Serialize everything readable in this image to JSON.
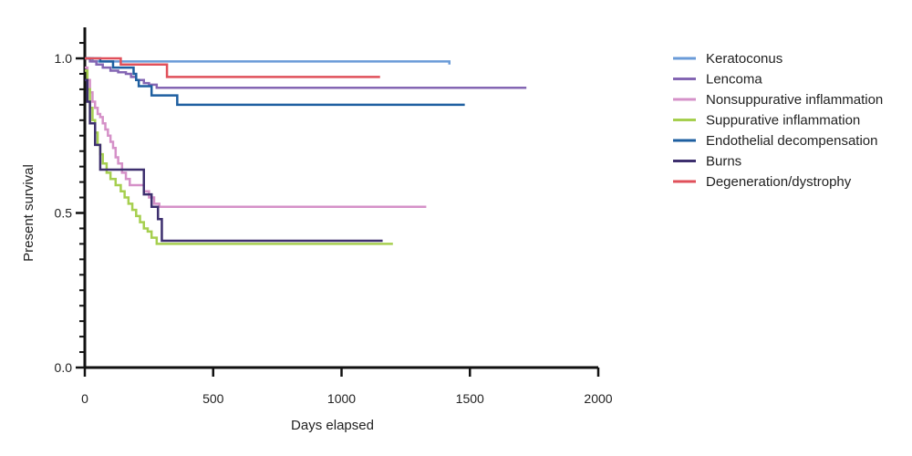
{
  "chart_data": {
    "type": "line",
    "step": true,
    "xlabel": "Days elapsed",
    "ylabel": "Present survival",
    "xlim": [
      0,
      2000
    ],
    "ylim": [
      0,
      1.0
    ],
    "x_ticks": [
      0,
      500,
      1000,
      1500,
      2000
    ],
    "x_tick_labels": [
      "0",
      "500",
      "1000",
      "1500",
      "2000"
    ],
    "y_ticks": [
      0.0,
      0.5,
      1.0
    ],
    "y_tick_labels": [
      "0.0",
      "0.5",
      "1.0"
    ],
    "y_minor_step": 0.05,
    "grid": false,
    "legend_position": "right",
    "series": [
      {
        "name": "Keratoconus",
        "color": "#6a9bd8",
        "points": [
          [
            0,
            1.0
          ],
          [
            30,
            0.99
          ],
          [
            1420,
            0.98
          ]
        ]
      },
      {
        "name": "Lencoma",
        "color": "#8466b3",
        "points": [
          [
            0,
            1.0
          ],
          [
            20,
            0.99
          ],
          [
            45,
            0.98
          ],
          [
            70,
            0.97
          ],
          [
            100,
            0.96
          ],
          [
            130,
            0.955
          ],
          [
            160,
            0.95
          ],
          [
            180,
            0.94
          ],
          [
            200,
            0.93
          ],
          [
            230,
            0.92
          ],
          [
            250,
            0.915
          ],
          [
            280,
            0.905
          ],
          [
            1720,
            0.905
          ]
        ]
      },
      {
        "name": "Nonsuppurative inflammation",
        "color": "#d591c8",
        "points": [
          [
            0,
            0.97
          ],
          [
            10,
            0.93
          ],
          [
            20,
            0.89
          ],
          [
            30,
            0.86
          ],
          [
            40,
            0.84
          ],
          [
            50,
            0.82
          ],
          [
            60,
            0.81
          ],
          [
            70,
            0.79
          ],
          [
            80,
            0.77
          ],
          [
            90,
            0.75
          ],
          [
            100,
            0.73
          ],
          [
            110,
            0.71
          ],
          [
            120,
            0.68
          ],
          [
            130,
            0.66
          ],
          [
            145,
            0.63
          ],
          [
            160,
            0.61
          ],
          [
            175,
            0.59
          ],
          [
            230,
            0.57
          ],
          [
            250,
            0.55
          ],
          [
            270,
            0.53
          ],
          [
            290,
            0.52
          ],
          [
            1330,
            0.52
          ]
        ]
      },
      {
        "name": "Suppurative inflammation",
        "color": "#a6cf4f",
        "points": [
          [
            0,
            0.96
          ],
          [
            10,
            0.9
          ],
          [
            20,
            0.84
          ],
          [
            30,
            0.8
          ],
          [
            40,
            0.76
          ],
          [
            50,
            0.72
          ],
          [
            60,
            0.69
          ],
          [
            70,
            0.66
          ],
          [
            85,
            0.63
          ],
          [
            100,
            0.61
          ],
          [
            120,
            0.59
          ],
          [
            140,
            0.57
          ],
          [
            155,
            0.55
          ],
          [
            170,
            0.53
          ],
          [
            185,
            0.51
          ],
          [
            200,
            0.49
          ],
          [
            215,
            0.47
          ],
          [
            230,
            0.45
          ],
          [
            245,
            0.44
          ],
          [
            260,
            0.42
          ],
          [
            280,
            0.4
          ],
          [
            1200,
            0.4
          ]
        ]
      },
      {
        "name": "Endothelial decompensation",
        "color": "#1e5fa0",
        "points": [
          [
            0,
            1.0
          ],
          [
            60,
            0.99
          ],
          [
            110,
            0.97
          ],
          [
            190,
            0.95
          ],
          [
            200,
            0.93
          ],
          [
            210,
            0.91
          ],
          [
            260,
            0.88
          ],
          [
            360,
            0.85
          ],
          [
            1480,
            0.85
          ]
        ]
      },
      {
        "name": "Burns",
        "color": "#3d2f6e",
        "points": [
          [
            0,
            0.93
          ],
          [
            10,
            0.86
          ],
          [
            20,
            0.79
          ],
          [
            40,
            0.72
          ],
          [
            60,
            0.64
          ],
          [
            140,
            0.64
          ],
          [
            230,
            0.56
          ],
          [
            260,
            0.52
          ],
          [
            285,
            0.48
          ],
          [
            300,
            0.41
          ],
          [
            1160,
            0.41
          ]
        ]
      },
      {
        "name": "Degeneration/dystrophy",
        "color": "#e0505a",
        "points": [
          [
            0,
            1.0
          ],
          [
            140,
            0.98
          ],
          [
            320,
            0.94
          ],
          [
            1150,
            0.94
          ]
        ]
      }
    ]
  }
}
